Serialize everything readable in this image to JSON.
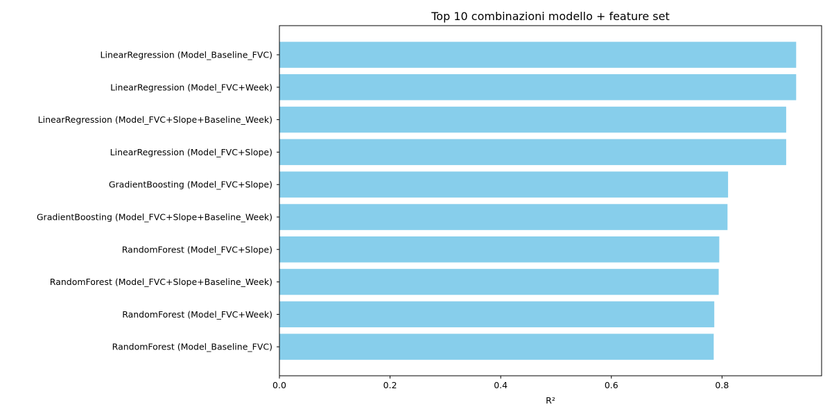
{
  "chart_data": {
    "type": "bar",
    "orientation": "horizontal",
    "title": "Top 10 combinazioni modello + feature set",
    "xlabel": "R²",
    "ylabel": "",
    "xlim": [
      0,
      0.98
    ],
    "xticks": [
      "0.0",
      "0.2",
      "0.4",
      "0.6",
      "0.8"
    ],
    "xtick_values": [
      0,
      0.2,
      0.4,
      0.6,
      0.8
    ],
    "grid": false,
    "bar_color": "#87CEEB",
    "categories": [
      "LinearRegression (Model_Baseline_FVC)",
      "LinearRegression (Model_FVC+Week)",
      "LinearRegression (Model_FVC+Slope+Baseline_Week)",
      "LinearRegression (Model_FVC+Slope)",
      "GradientBoosting (Model_FVC+Slope)",
      "GradientBoosting (Model_FVC+Slope+Baseline_Week)",
      "RandomForest (Model_FVC+Slope)",
      "RandomForest (Model_FVC+Slope+Baseline_Week)",
      "RandomForest (Model_FVC+Week)",
      "RandomForest (Model_Baseline_FVC)"
    ],
    "values": [
      0.934,
      0.934,
      0.916,
      0.916,
      0.811,
      0.81,
      0.795,
      0.794,
      0.786,
      0.785
    ]
  }
}
